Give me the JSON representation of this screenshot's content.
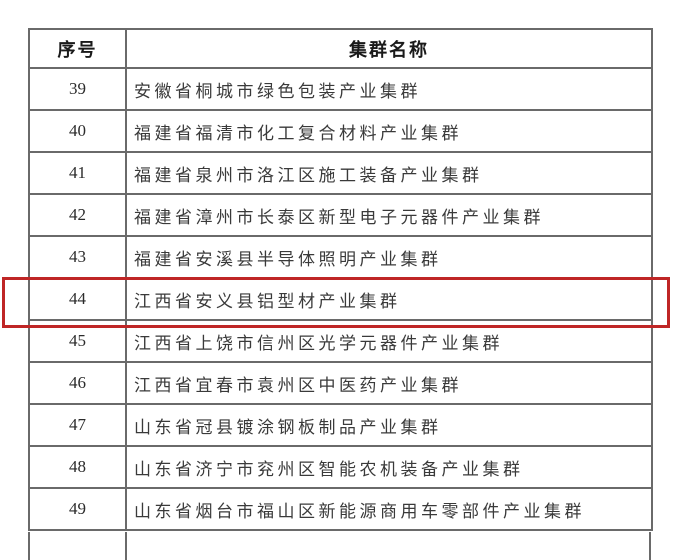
{
  "table": {
    "headers": [
      "序号",
      "集群名称"
    ],
    "rows": [
      {
        "no": "39",
        "name": "安徽省桐城市绿色包装产业集群"
      },
      {
        "no": "40",
        "name": "福建省福清市化工复合材料产业集群"
      },
      {
        "no": "41",
        "name": "福建省泉州市洛江区施工装备产业集群"
      },
      {
        "no": "42",
        "name": "福建省漳州市长泰区新型电子元器件产业集群"
      },
      {
        "no": "43",
        "name": "福建省安溪县半导体照明产业集群"
      },
      {
        "no": "44",
        "name": "江西省安义县铝型材产业集群"
      },
      {
        "no": "45",
        "name": "江西省上饶市信州区光学元器件产业集群"
      },
      {
        "no": "46",
        "name": "江西省宜春市袁州区中医药产业集群"
      },
      {
        "no": "47",
        "name": "山东省冠县镀涂钢板制品产业集群"
      },
      {
        "no": "48",
        "name": "山东省济宁市兖州区智能农机装备产业集群"
      },
      {
        "no": "49",
        "name": "山东省烟台市福山区新能源商用车零部件产业集群"
      }
    ],
    "highlighted_row_no": "44",
    "highlight_color": "#bf2626",
    "border_color": "#6a6a6a"
  }
}
